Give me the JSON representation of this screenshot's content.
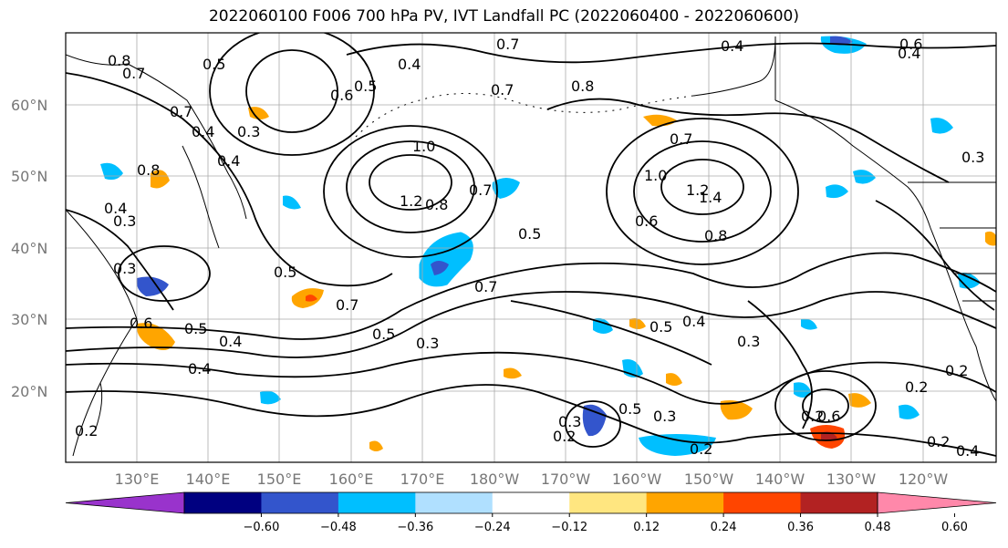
{
  "title": "2022060100 F006 700 hPa PV, IVT Landfall PC (2022060400 - 2022060600)",
  "axes": {
    "lat_labels": [
      "60°N",
      "50°N",
      "40°N",
      "30°N",
      "20°N"
    ],
    "lon_labels": [
      "130°E",
      "140°E",
      "150°E",
      "160°E",
      "170°E",
      "180°W",
      "170°W",
      "160°W",
      "150°W",
      "140°W",
      "130°W",
      "120°W"
    ]
  },
  "colorbar": {
    "colors": [
      "#9933cc",
      "#000080",
      "#3355cc",
      "#00bfff",
      "#b0e0ff",
      "#ffffff",
      "#ffe680",
      "#ffa500",
      "#ff4500",
      "#b22222",
      "#ff88aa"
    ],
    "ticks": [
      "−0.60",
      "−0.48",
      "−0.36",
      "−0.24",
      "−0.12",
      "0.12",
      "0.24",
      "0.36",
      "0.48",
      "0.60"
    ]
  },
  "contour_labels": [
    "0.8",
    "0.7",
    "0.5",
    "0.4",
    "0.7",
    "0.4",
    "0.6",
    "0.7",
    "0.8",
    "0.6",
    "0.4",
    "0.7",
    "0.5",
    "0.3",
    "0.4",
    "0.8",
    "0.4",
    "0.3",
    "1.0",
    "1.2",
    "0.8",
    "0.7",
    "0.5",
    "0.7",
    "0.7",
    "1.0",
    "1.4",
    "1.2",
    "0.6",
    "0.8",
    "0.5",
    "0.3",
    "0.5",
    "0.4",
    "0.7",
    "0.5",
    "0.4",
    "0.3",
    "0.5",
    "0.4",
    "0.3",
    "0.5",
    "0.3",
    "0.2",
    "0.3",
    "0.2",
    "0.2",
    "0.2",
    "0.2",
    "0.4",
    "0.2",
    "0.6",
    "0.3",
    "0.4",
    "0.2",
    "0.6"
  ]
}
